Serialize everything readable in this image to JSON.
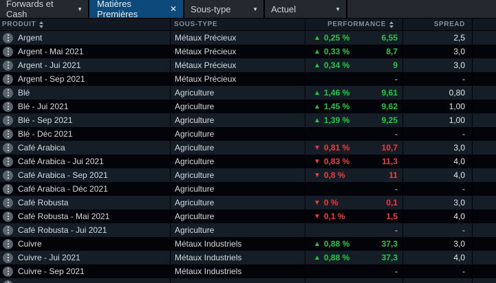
{
  "topbar": {
    "forwards_cash": {
      "label": "Forwards et Cash"
    },
    "active_tab": {
      "label": "Matières Premières"
    },
    "sous_type": {
      "label": "Sous-type"
    },
    "actuel": {
      "label": "Actuel"
    }
  },
  "table": {
    "columns": {
      "produit": "PRODUIT",
      "sous_type": "SOUS-TYPE",
      "performance": "PERFORMANCE",
      "spread": "SPREAD"
    },
    "rows": [
      {
        "produit": "Argent",
        "sous_type": "Métaux Précieux",
        "direction": "up",
        "percent": "0,25 %",
        "value": "6,55",
        "spread": "2,5"
      },
      {
        "produit": "Argent - Mai 2021",
        "sous_type": "Métaux Précieux",
        "direction": "up",
        "percent": "0,33 %",
        "value": "8,7",
        "spread": "3,0"
      },
      {
        "produit": "Argent - Jui 2021",
        "sous_type": "Métaux Précieux",
        "direction": "up",
        "percent": "0,34 %",
        "value": "9",
        "spread": "3,0"
      },
      {
        "produit": "Argent - Sep 2021",
        "sous_type": "Métaux Précieux",
        "direction": "none",
        "percent": "",
        "value": "-",
        "spread": "-"
      },
      {
        "produit": "Blé",
        "sous_type": "Agriculture",
        "direction": "up",
        "percent": "1,46 %",
        "value": "9,61",
        "spread": "0,80"
      },
      {
        "produit": "Blé - Jui 2021",
        "sous_type": "Agriculture",
        "direction": "up",
        "percent": "1,45 %",
        "value": "9,62",
        "spread": "1,00"
      },
      {
        "produit": "Blé - Sep 2021",
        "sous_type": "Agriculture",
        "direction": "up",
        "percent": "1,39 %",
        "value": "9,25",
        "spread": "1,00"
      },
      {
        "produit": "Blé - Déc 2021",
        "sous_type": "Agriculture",
        "direction": "none",
        "percent": "",
        "value": "-",
        "spread": "-"
      },
      {
        "produit": "Café Arabica",
        "sous_type": "Agriculture",
        "direction": "down",
        "percent": "0,81 %",
        "value": "10,7",
        "spread": "3,0"
      },
      {
        "produit": "Café Arabica - Jui 2021",
        "sous_type": "Agriculture",
        "direction": "down",
        "percent": "0,83 %",
        "value": "11,3",
        "spread": "4,0"
      },
      {
        "produit": "Café Arabica - Sep 2021",
        "sous_type": "Agriculture",
        "direction": "down",
        "percent": "0,8 %",
        "value": "11",
        "spread": "4,0"
      },
      {
        "produit": "Café Arabica - Déc 2021",
        "sous_type": "Agriculture",
        "direction": "none",
        "percent": "",
        "value": "-",
        "spread": "-"
      },
      {
        "produit": "Café Robusta",
        "sous_type": "Agriculture",
        "direction": "down",
        "percent": "0 %",
        "value": "0,1",
        "spread": "3,0"
      },
      {
        "produit": "Café Robusta - Mai 2021",
        "sous_type": "Agriculture",
        "direction": "down",
        "percent": "0,1 %",
        "value": "1,5",
        "spread": "4,0"
      },
      {
        "produit": "Café Robusta - Jui 2021",
        "sous_type": "Agriculture",
        "direction": "none",
        "percent": "",
        "value": "-",
        "spread": "-"
      },
      {
        "produit": "Cuivre",
        "sous_type": "Métaux Industriels",
        "direction": "up",
        "percent": "0,88 %",
        "value": "37,3",
        "spread": "3,0"
      },
      {
        "produit": "Cuivre - Jui 2021",
        "sous_type": "Métaux Industriels",
        "direction": "up",
        "percent": "0,88 %",
        "value": "37,3",
        "spread": "4,0"
      },
      {
        "produit": "Cuivre - Sep 2021",
        "sous_type": "Métaux Industriels",
        "direction": "none",
        "percent": "",
        "value": "-",
        "spread": "-"
      }
    ]
  },
  "icons": {
    "up_triangle": "▲",
    "down_triangle": "▼",
    "caret_down": "▼",
    "close": "✕"
  },
  "colors": {
    "positive": "#1fcb44",
    "negative": "#f43b3b",
    "accent_tab": "#0d4a7b"
  }
}
